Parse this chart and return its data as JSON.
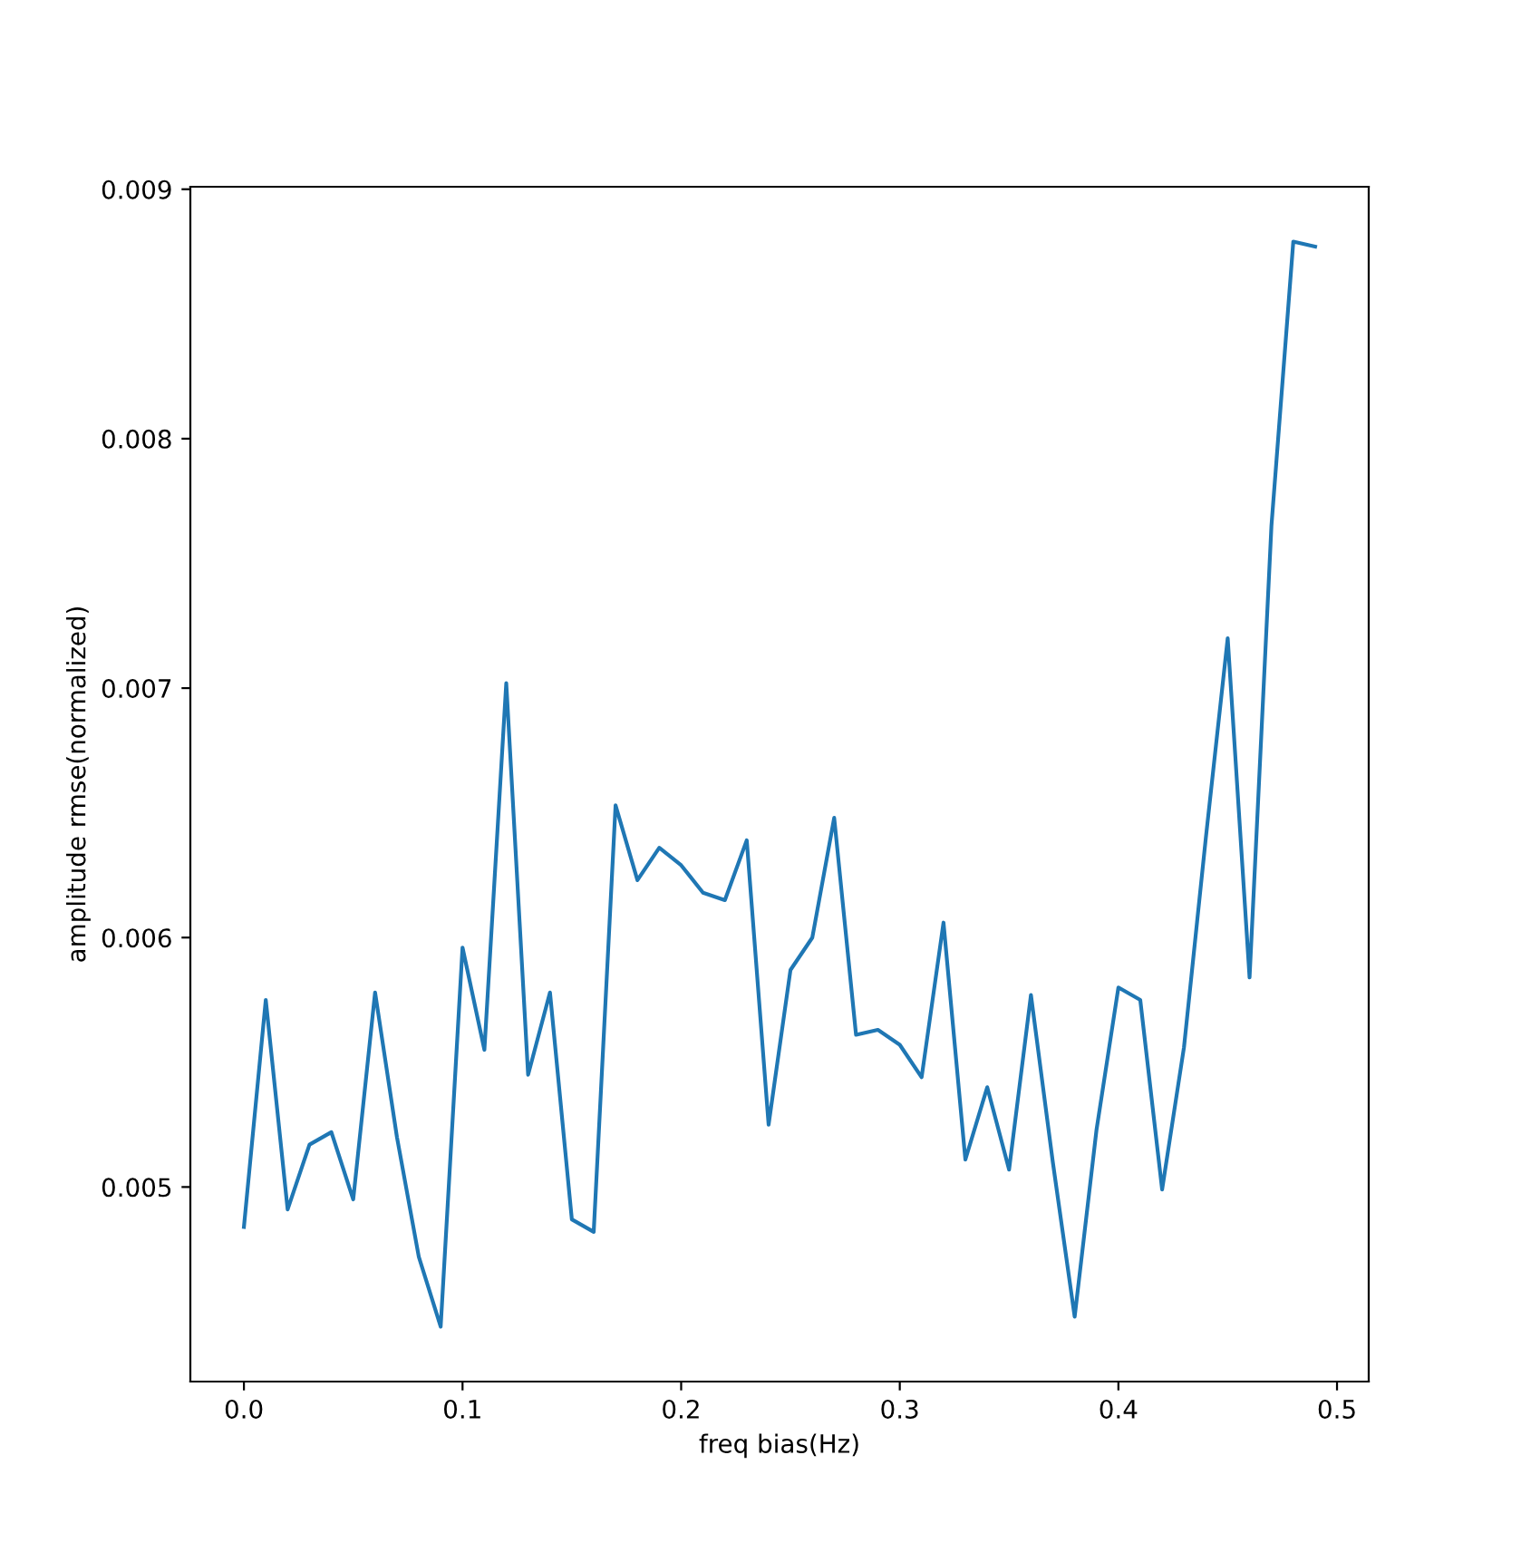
{
  "chart_data": {
    "type": "line",
    "xlabel": "freq bias(Hz)",
    "ylabel": "amplitude rmse(normalized)",
    "x": [
      0.0,
      0.01,
      0.02,
      0.03,
      0.04,
      0.05,
      0.06,
      0.07,
      0.08,
      0.09,
      0.1,
      0.11,
      0.12,
      0.13,
      0.14,
      0.15,
      0.16,
      0.17,
      0.18,
      0.19,
      0.2,
      0.21,
      0.22,
      0.23,
      0.24,
      0.25,
      0.26,
      0.27,
      0.28,
      0.29,
      0.3,
      0.31,
      0.32,
      0.33,
      0.34,
      0.35,
      0.36,
      0.37,
      0.38,
      0.39,
      0.4,
      0.41,
      0.42,
      0.43,
      0.44,
      0.45,
      0.46,
      0.47,
      0.48,
      0.49
    ],
    "series": [
      {
        "color": "#1f77b4",
        "values": [
          0.00484,
          0.00575,
          0.00491,
          0.00517,
          0.00522,
          0.00495,
          0.00578,
          0.0052,
          0.00472,
          0.00444,
          0.00596,
          0.00555,
          0.00702,
          0.00545,
          0.00578,
          0.00487,
          0.00482,
          0.00653,
          0.00623,
          0.00636,
          0.00629,
          0.00618,
          0.00615,
          0.00639,
          0.00525,
          0.00587,
          0.006,
          0.00648,
          0.00561,
          0.00563,
          0.00557,
          0.00544,
          0.00606,
          0.00511,
          0.0054,
          0.00507,
          0.00577,
          0.0051,
          0.00448,
          0.00523,
          0.0058,
          0.00575,
          0.00499,
          0.00556,
          0.0064,
          0.0072,
          0.00584,
          0.00765,
          0.00879,
          0.00877
        ]
      }
    ],
    "xlim": [
      -0.0245,
      0.5145
    ],
    "ylim": [
      0.00422,
      0.00901
    ],
    "xticks": [
      {
        "value": 0.0,
        "label": "0.0"
      },
      {
        "value": 0.1,
        "label": "0.1"
      },
      {
        "value": 0.2,
        "label": "0.2"
      },
      {
        "value": 0.3,
        "label": "0.3"
      },
      {
        "value": 0.4,
        "label": "0.4"
      },
      {
        "value": 0.5,
        "label": "0.5"
      }
    ],
    "yticks": [
      0.005,
      0.006,
      0.007,
      0.008,
      0.009
    ],
    "grid": false,
    "legend": false,
    "marker": "none",
    "line_style": "solid"
  }
}
